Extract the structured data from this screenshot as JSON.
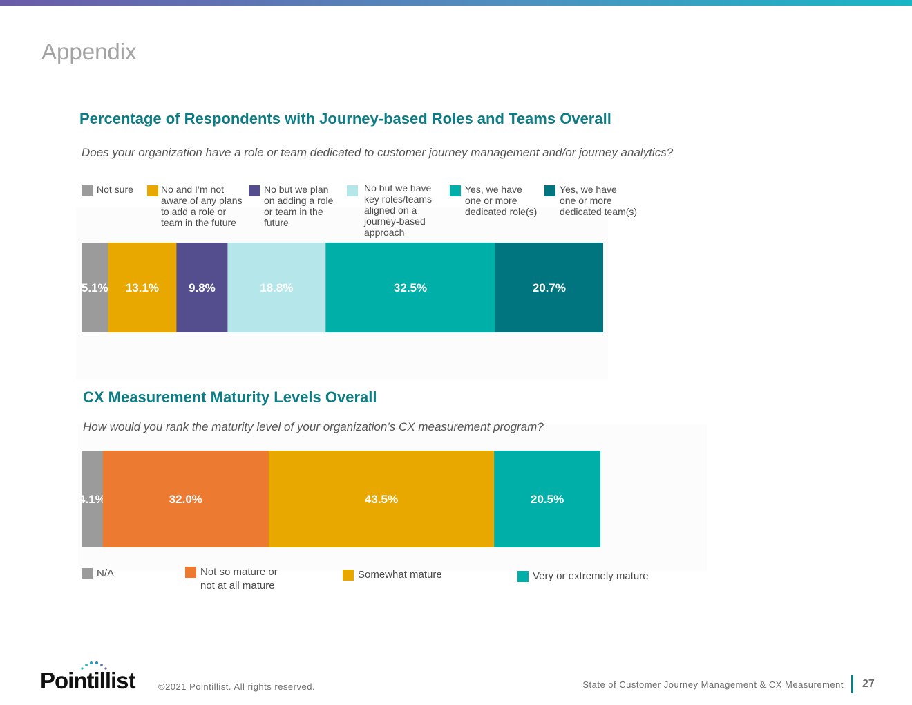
{
  "page": {
    "section_title": "Appendix",
    "copyright": "©2021 Pointillist. All rights reserved.",
    "report_title": "State of Customer Journey Management & CX Measurement",
    "page_number": "27",
    "logo_text": "Pointillist"
  },
  "colors": {
    "accent": "#0c7d85",
    "topbar_start": "#6b5ba8",
    "topbar_end": "#17b7c5"
  },
  "chart_data": [
    {
      "type": "bar",
      "orientation": "horizontal-stacked",
      "title": "Percentage of Respondents with Journey-based Roles and Teams Overall",
      "subtitle": "Does your organization have a role or team dedicated to customer journey management and/or journey analytics?",
      "legend_position": "top",
      "series": [
        {
          "name": "Not sure",
          "value": 5.1,
          "label": "5.1%",
          "color": "#9b9b9b",
          "label_color": "#ffffff"
        },
        {
          "name": "No and I’m not\naware of any plans\nto add a role or\nteam in the future",
          "value": 13.1,
          "label": "13.1%",
          "color": "#e8a800",
          "label_color": "#ffffff"
        },
        {
          "name": "No but we plan\non adding a role\nor team in the\nfuture",
          "value": 9.8,
          "label": "9.8%",
          "color": "#544e8f",
          "label_color": "#ffffff"
        },
        {
          "name": "No but we have\nkey roles/teams\naligned on a\njourney-based\napproach",
          "value": 18.8,
          "label": "18.8%",
          "color": "#b4e6ea",
          "label_color": "#ffffff"
        },
        {
          "name": "Yes, we have\none or more\ndedicated role(s)",
          "value": 32.5,
          "label": "32.5%",
          "color": "#00afa8",
          "label_color": "#ffffff"
        },
        {
          "name": "Yes, we have\none or more\ndedicated team(s)",
          "value": 20.7,
          "label": "20.7%",
          "color": "#00757f",
          "label_color": "#ffffff"
        }
      ]
    },
    {
      "type": "bar",
      "orientation": "horizontal-stacked",
      "title": "CX Measurement Maturity Levels Overall",
      "subtitle": "How would you rank the maturity level of your organization’s CX measurement program?",
      "legend_position": "bottom",
      "series": [
        {
          "name": "N/A",
          "value": 4.1,
          "label": "4.1%",
          "color": "#9b9b9b",
          "label_color": "#ffffff"
        },
        {
          "name": "Not so mature or\nnot at all mature",
          "value": 32.0,
          "label": "32.0%",
          "color": "#ec7a30",
          "label_color": "#ffffff"
        },
        {
          "name": "Somewhat mature",
          "value": 43.5,
          "label": "43.5%",
          "color": "#e8a800",
          "label_color": "#ffffff"
        },
        {
          "name": "Very or extremely mature",
          "value": 20.5,
          "label": "20.5%",
          "color": "#00afa8",
          "label_color": "#ffffff"
        }
      ]
    }
  ]
}
